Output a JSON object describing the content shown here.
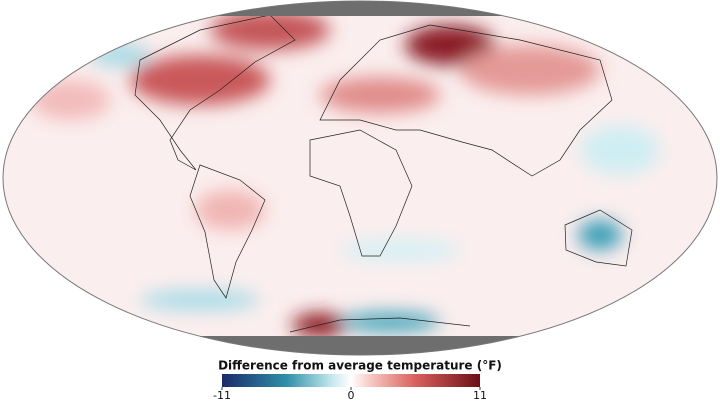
{
  "colorbar": {
    "title": "Difference from average temperature (°F)",
    "min": -11,
    "max": 11,
    "ticks": [
      -11,
      0,
      11
    ]
  }
}
